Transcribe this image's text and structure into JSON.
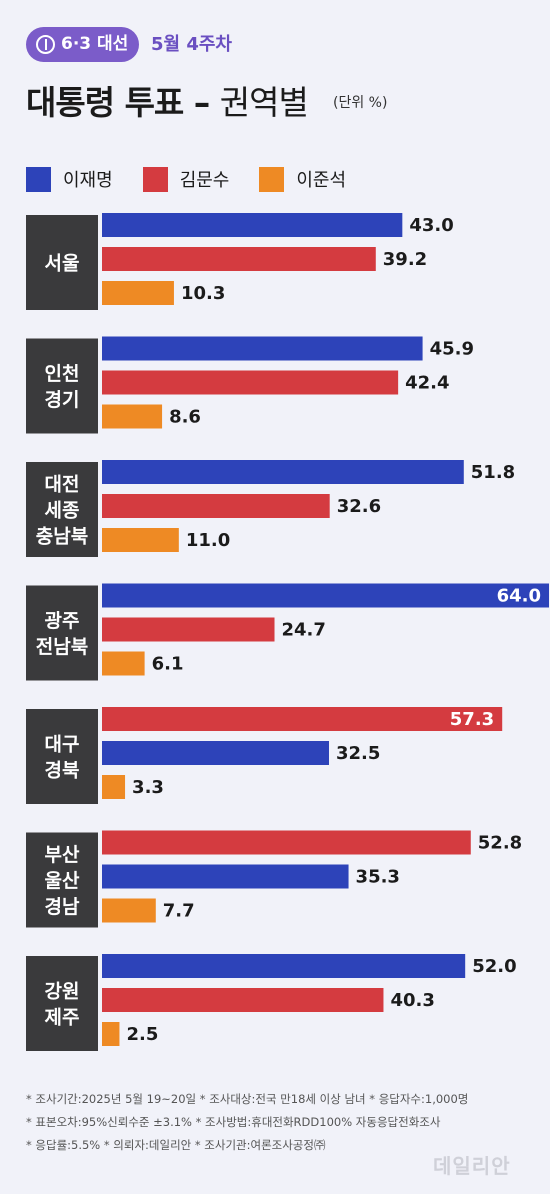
{
  "header": {
    "badge": "6·3 대선",
    "week": "5월 4주차",
    "title_main": "대통령 투표 –",
    "title_sub": "권역별",
    "unit": "(단위 %)"
  },
  "colors": {
    "lee_jm": "#2d43b9",
    "kim_ms": "#d43b40",
    "lee_js": "#ee8a24",
    "label_bg": "#3a3a3c"
  },
  "chart_data": {
    "type": "bar",
    "orientation": "horizontal",
    "xlim": [
      0,
      64
    ],
    "series_names": [
      "이재명",
      "김문수",
      "이준석"
    ],
    "groups": [
      {
        "label": [
          "서울"
        ],
        "bars": [
          {
            "name": "이재명",
            "value": 43.0,
            "text": "43.0"
          },
          {
            "name": "김문수",
            "value": 39.2,
            "text": "39.2"
          },
          {
            "name": "이준석",
            "value": 10.3,
            "text": "10.3"
          }
        ]
      },
      {
        "label": [
          "인천",
          "경기"
        ],
        "bars": [
          {
            "name": "이재명",
            "value": 45.9,
            "text": "45.9"
          },
          {
            "name": "김문수",
            "value": 42.4,
            "text": "42.4"
          },
          {
            "name": "이준석",
            "value": 8.6,
            "text": "8.6"
          }
        ]
      },
      {
        "label": [
          "대전",
          "세종",
          "충남북"
        ],
        "bars": [
          {
            "name": "이재명",
            "value": 51.8,
            "text": "51.8"
          },
          {
            "name": "김문수",
            "value": 32.6,
            "text": "32.6"
          },
          {
            "name": "이준석",
            "value": 11.0,
            "text": "11.0"
          }
        ]
      },
      {
        "label": [
          "광주",
          "전남북"
        ],
        "bars": [
          {
            "name": "이재명",
            "value": 64.0,
            "text": "64.0"
          },
          {
            "name": "김문수",
            "value": 24.7,
            "text": "24.7"
          },
          {
            "name": "이준석",
            "value": 6.1,
            "text": "6.1"
          }
        ]
      },
      {
        "label": [
          "대구",
          "경북"
        ],
        "bars": [
          {
            "name": "김문수",
            "value": 57.3,
            "text": "57.3"
          },
          {
            "name": "이재명",
            "value": 32.5,
            "text": "32.5"
          },
          {
            "name": "이준석",
            "value": 3.3,
            "text": "3.3"
          }
        ]
      },
      {
        "label": [
          "부산",
          "울산",
          "경남"
        ],
        "bars": [
          {
            "name": "김문수",
            "value": 52.8,
            "text": "52.8"
          },
          {
            "name": "이재명",
            "value": 35.3,
            "text": "35.3"
          },
          {
            "name": "이준석",
            "value": 7.7,
            "text": "7.7"
          }
        ]
      },
      {
        "label": [
          "강원",
          "제주"
        ],
        "bars": [
          {
            "name": "이재명",
            "value": 52.0,
            "text": "52.0"
          },
          {
            "name": "김문수",
            "value": 40.3,
            "text": "40.3"
          },
          {
            "name": "이준석",
            "value": 2.5,
            "text": "2.5"
          }
        ]
      }
    ]
  },
  "notes": [
    "* 조사기간:2025년 5월 19~20일  * 조사대상:전국 만18세 이상 남녀  * 응답자수:1,000명",
    "* 표본오차:95%신뢰수준 ±3.1%  * 조사방법:휴대전화RDD100% 자동응답전화조사",
    "* 응답률:5.5%  * 의뢰자:데일리안  * 조사기관:여론조사공정㈜"
  ],
  "brand": "데일리안"
}
